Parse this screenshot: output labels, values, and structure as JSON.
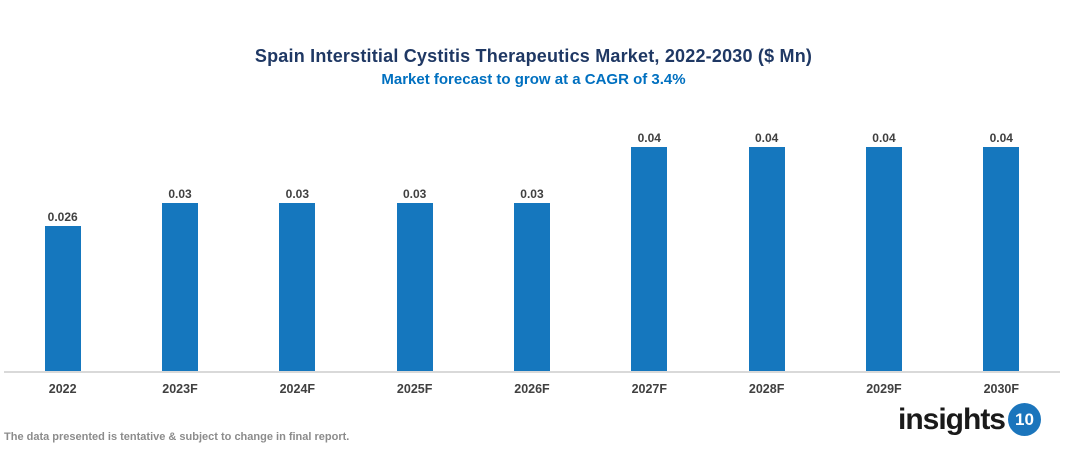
{
  "header": {
    "title": "Spain Interstitial Cystitis Therapeutics Market, 2022-2030 ($ Mn)",
    "subtitle": "Market forecast to grow at a CAGR of 3.4%"
  },
  "chart_data": {
    "type": "bar",
    "title": "Spain Interstitial Cystitis Therapeutics Market, 2022-2030 ($ Mn)",
    "subtitle": "Market forecast to grow at a CAGR of 3.4%",
    "categories": [
      "2022",
      "2023F",
      "2024F",
      "2025F",
      "2026F",
      "2027F",
      "2028F",
      "2029F",
      "2030F"
    ],
    "values": [
      0.026,
      0.03,
      0.03,
      0.03,
      0.03,
      0.04,
      0.04,
      0.04,
      0.04
    ],
    "value_labels": [
      "0.026",
      "0.03",
      "0.03",
      "0.03",
      "0.03",
      "0.04",
      "0.04",
      "0.04",
      "0.04"
    ],
    "xlabel": "",
    "ylabel": "",
    "ylim": [
      0,
      0.047
    ],
    "grid": false,
    "legend": false,
    "bar_color": "#1577BE",
    "axis_line_color": "#D9D9D9",
    "label_color": "#404040"
  },
  "footer": {
    "disclaimer": "The data presented is tentative & subject to change in final report."
  },
  "logo": {
    "text": "insights",
    "badge": "10"
  },
  "colors": {
    "title": "#1F3864",
    "subtitle": "#0070C0",
    "bar": "#1577BE",
    "axis_line": "#D9D9D9",
    "footer_text": "#8C8C8C",
    "logo_badge": "#1B75BC"
  }
}
